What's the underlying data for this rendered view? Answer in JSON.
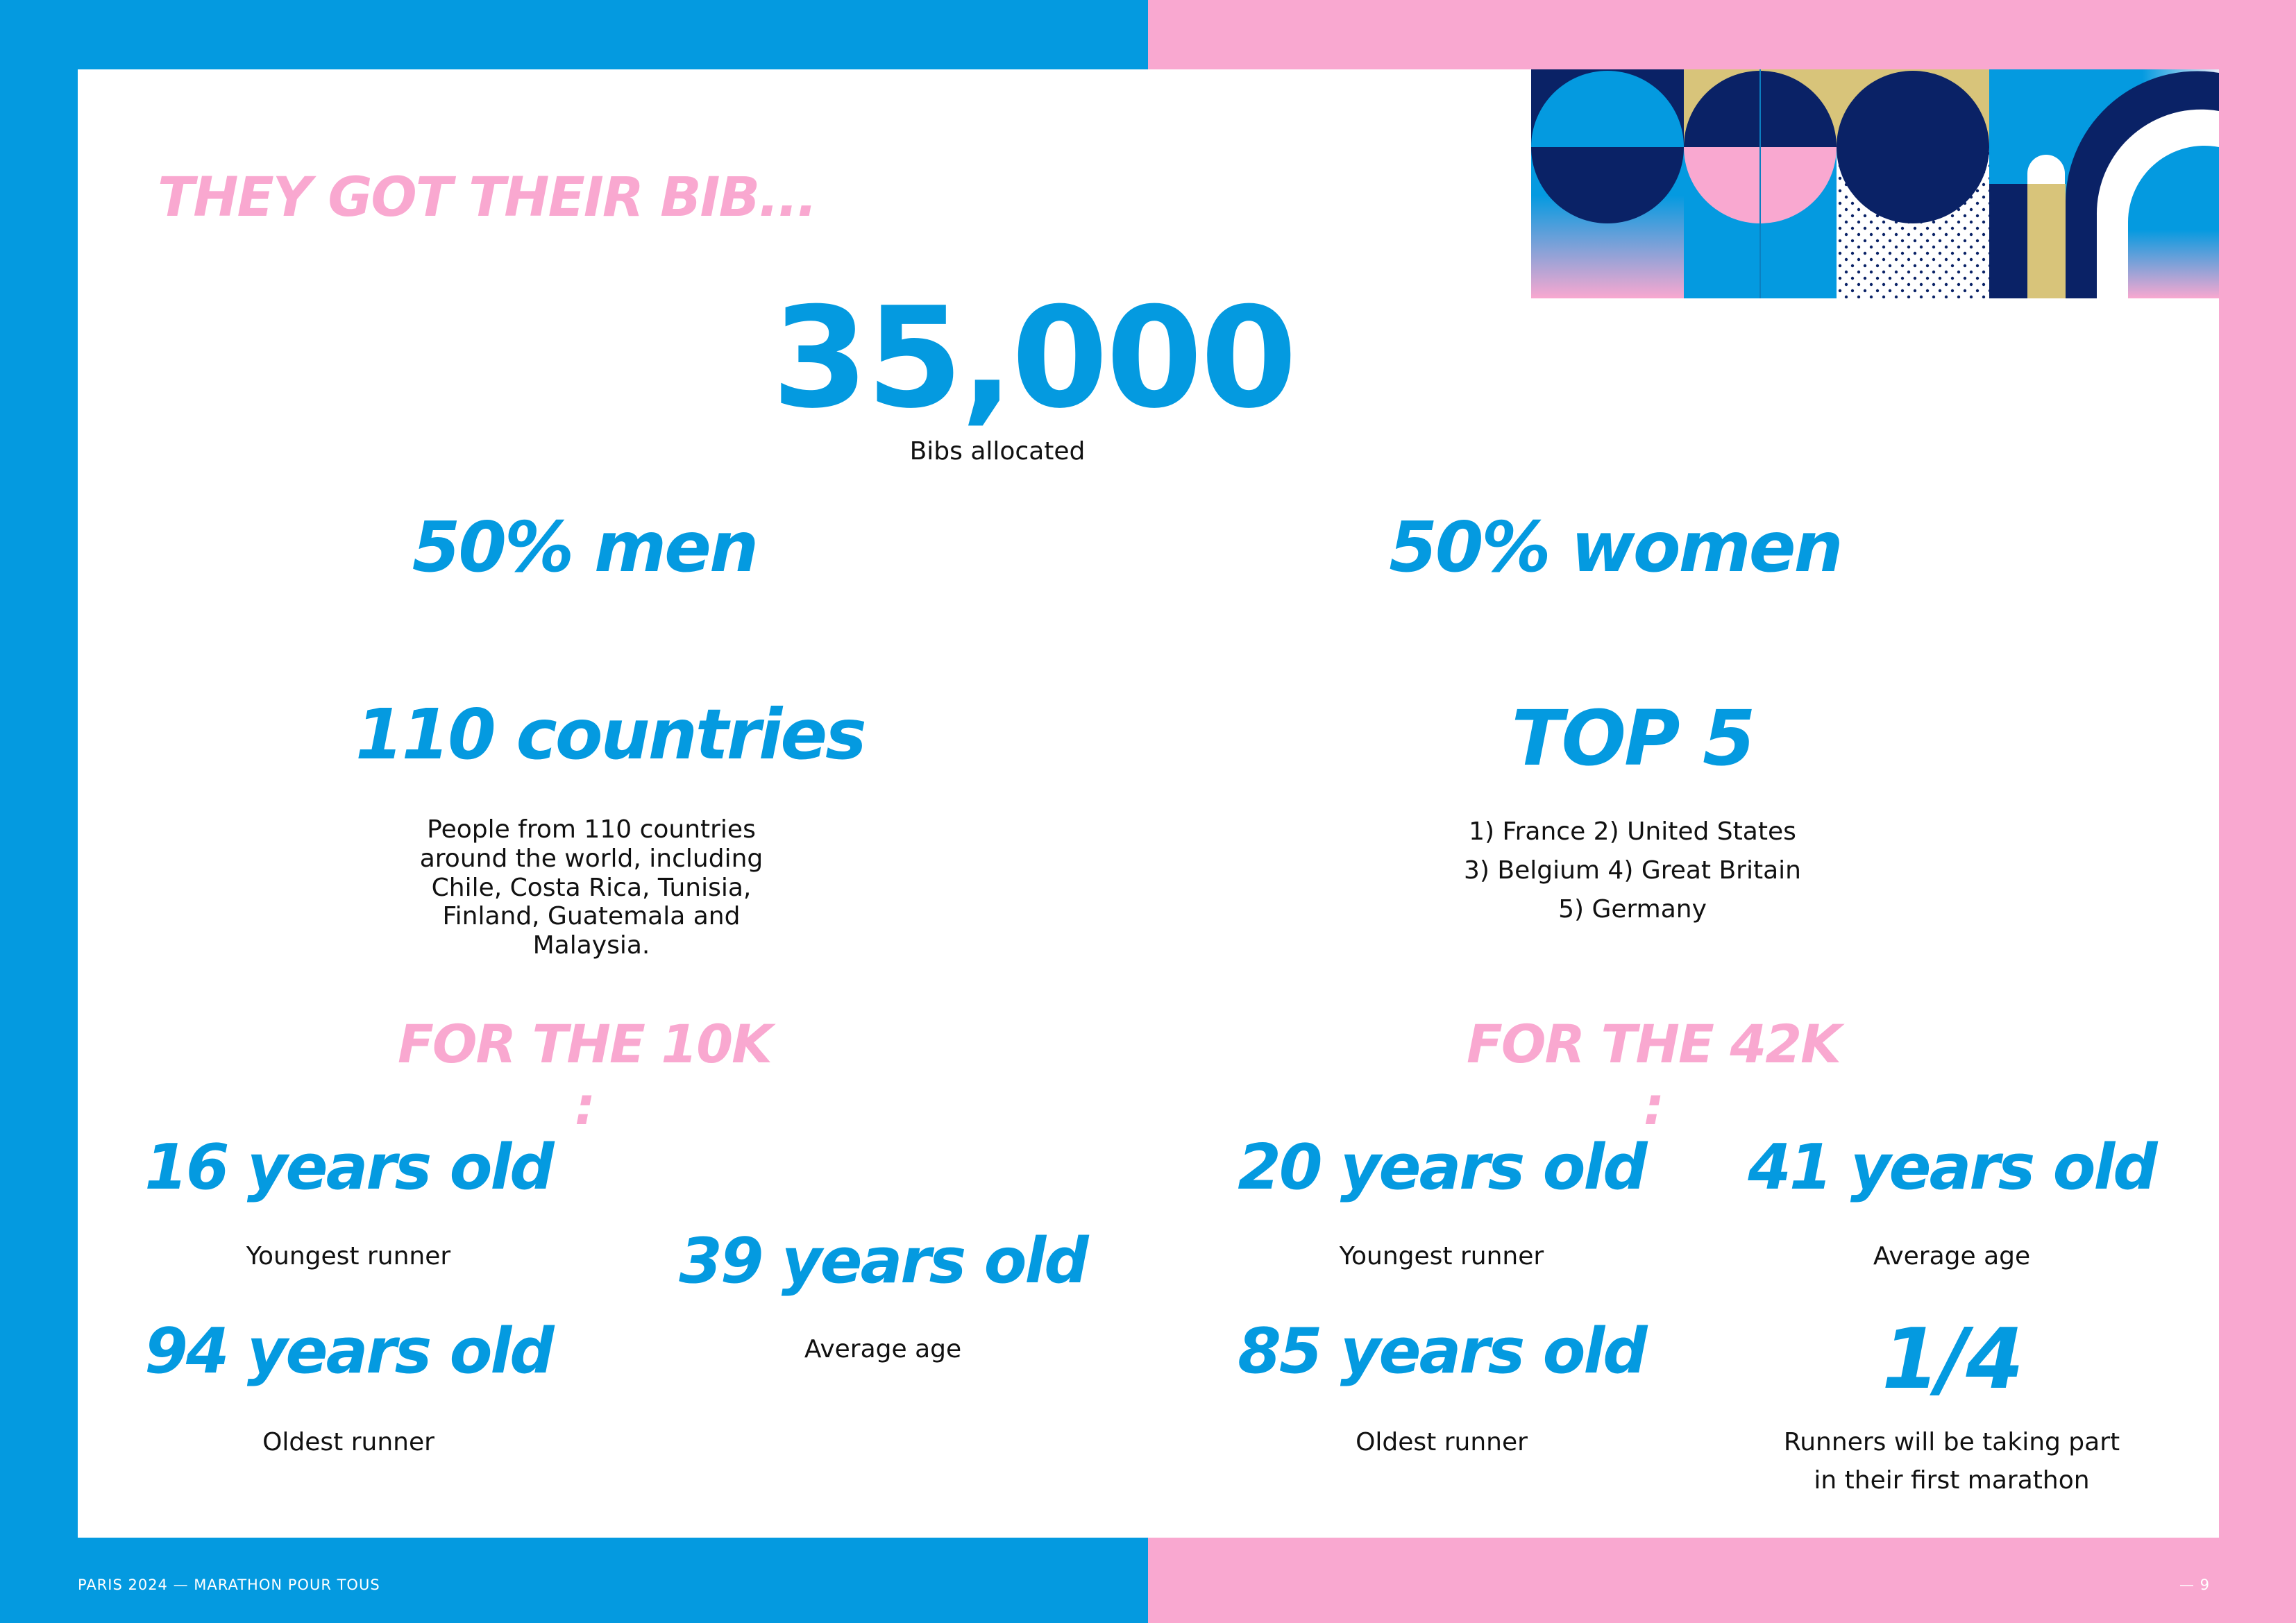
{
  "colors": {
    "blue": "#049ae0",
    "pink": "#f9a8d0",
    "navy": "#0a2266",
    "gold": "#d8c47a",
    "white": "#ffffff",
    "text": "#111111"
  },
  "heading": "THEY GOT THEIR BIB...",
  "bibs": {
    "value": "35,000",
    "label": "Bibs allocated"
  },
  "gender": {
    "men": "50% men",
    "women": "50% women"
  },
  "countries": {
    "title": "110 countries",
    "description": "People from 110 countries around the world, including Chile, Costa Rica, Tunisia, Finland, Guatemala and Malaysia."
  },
  "top5": {
    "title": "TOP 5",
    "line1": "1) France 2) United States",
    "line2": "3) Belgium 4) Great Britain",
    "line3": "5) Germany"
  },
  "ten_k": {
    "heading": "FOR THE 10K :",
    "youngest": {
      "value": "16 years old",
      "label": "Youngest runner"
    },
    "average": {
      "value": "39 years old",
      "label": "Average age"
    },
    "oldest": {
      "value": "94 years old",
      "label": "Oldest runner"
    }
  },
  "forty_two_k": {
    "heading": "FOR THE 42K :",
    "youngest": {
      "value": "20 years old",
      "label": "Youngest runner"
    },
    "average": {
      "value": "41 years old",
      "label": "Average age"
    },
    "oldest": {
      "value": "85 years old",
      "label": "Oldest runner"
    },
    "first_marathon": {
      "value": "1/4",
      "label_line1": "Runners will be taking part",
      "label_line2": "in their first marathon"
    }
  },
  "footer": {
    "left": "PARIS 2024 — MARATHON POUR TOUS",
    "right": "— 9"
  }
}
